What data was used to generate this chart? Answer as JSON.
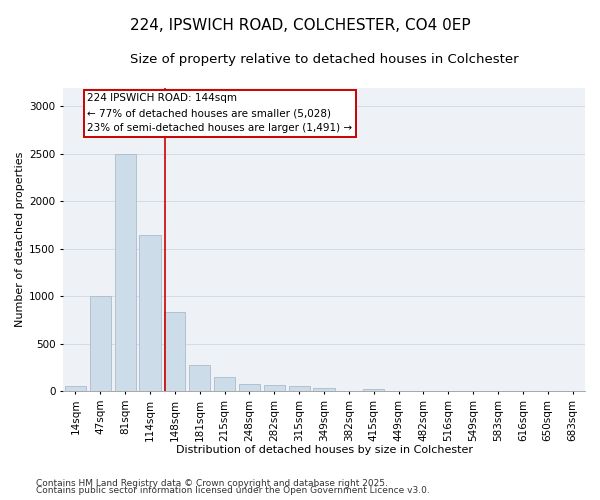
{
  "title1": "224, IPSWICH ROAD, COLCHESTER, CO4 0EP",
  "title2": "Size of property relative to detached houses in Colchester",
  "xlabel": "Distribution of detached houses by size in Colchester",
  "ylabel": "Number of detached properties",
  "categories": [
    "14sqm",
    "47sqm",
    "81sqm",
    "114sqm",
    "148sqm",
    "181sqm",
    "215sqm",
    "248sqm",
    "282sqm",
    "315sqm",
    "349sqm",
    "382sqm",
    "415sqm",
    "449sqm",
    "482sqm",
    "516sqm",
    "549sqm",
    "583sqm",
    "616sqm",
    "650sqm",
    "683sqm"
  ],
  "values": [
    50,
    1000,
    2500,
    1650,
    830,
    270,
    150,
    75,
    60,
    50,
    30,
    5,
    25,
    5,
    0,
    0,
    0,
    0,
    0,
    0,
    0
  ],
  "bar_color": "#ccdce8",
  "bar_edge_color": "#aabccc",
  "bar_linewidth": 0.6,
  "vline_x": 3.62,
  "vline_color": "#cc0000",
  "vline_linewidth": 1.2,
  "annotation_text_line1": "224 IPSWICH ROAD: 144sqm",
  "annotation_text_line2": "← 77% of detached houses are smaller (5,028)",
  "annotation_text_line3": "23% of semi-detached houses are larger (1,491) →",
  "box_edge_color": "#cc0000",
  "box_face_color": "white",
  "ylim": [
    0,
    3200
  ],
  "yticks": [
    0,
    500,
    1000,
    1500,
    2000,
    2500,
    3000
  ],
  "grid_color": "#d0d8e0",
  "bg_color": "#eef2f7",
  "footer1": "Contains HM Land Registry data © Crown copyright and database right 2025.",
  "footer2": "Contains public sector information licensed under the Open Government Licence v3.0.",
  "title1_fontsize": 11,
  "title2_fontsize": 9.5,
  "xlabel_fontsize": 8,
  "ylabel_fontsize": 8,
  "tick_fontsize": 7.5,
  "annotation_fontsize": 7.5,
  "footer_fontsize": 6.5
}
